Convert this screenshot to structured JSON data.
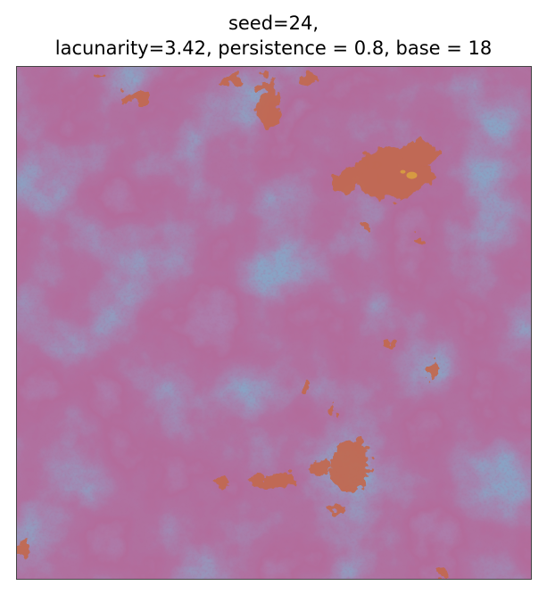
{
  "figure": {
    "title_line1": "seed=24,",
    "title_line2": "lacunarity=3.42, persistence = 0.8, base = 18"
  },
  "palette": {
    "low": "#3d5a8a",
    "mid": "#5e3d6e",
    "dark": "#6e2a55",
    "high": "#c2694f",
    "peak": "#d9a040"
  }
}
